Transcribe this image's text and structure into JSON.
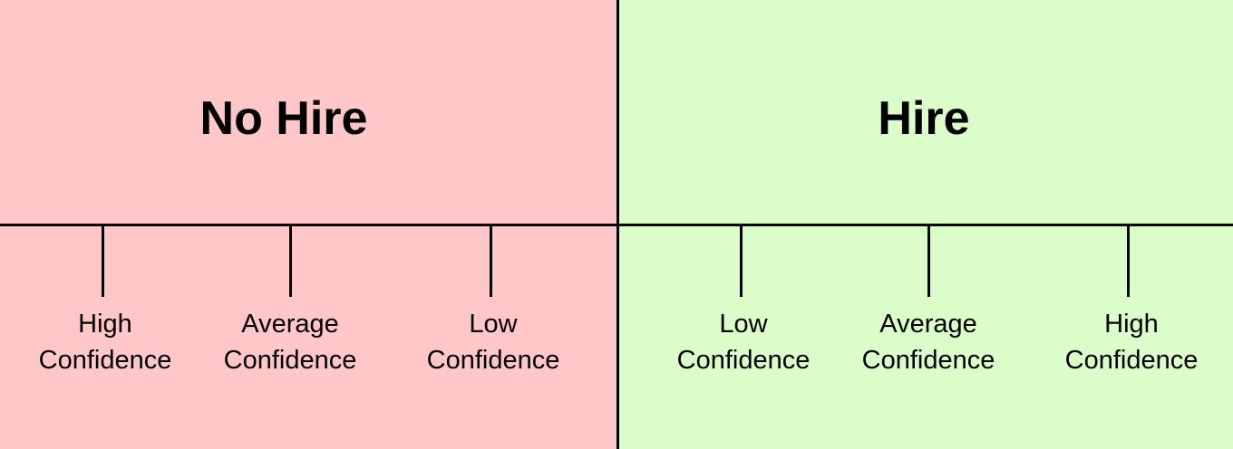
{
  "no_hire": {
    "title": "No Hire",
    "color": "#ffc7c7",
    "levels": [
      {
        "line1": "High",
        "line2": "Confidence"
      },
      {
        "line1": "Average",
        "line2": "Confidence"
      },
      {
        "line1": "Low",
        "line2": "Confidence"
      }
    ]
  },
  "hire": {
    "title": "Hire",
    "color": "#dbfdc9",
    "levels": [
      {
        "line1": "Low",
        "line2": "Confidence"
      },
      {
        "line1": "Average",
        "line2": "Confidence"
      },
      {
        "line1": "High",
        "line2": "Confidence"
      }
    ]
  }
}
